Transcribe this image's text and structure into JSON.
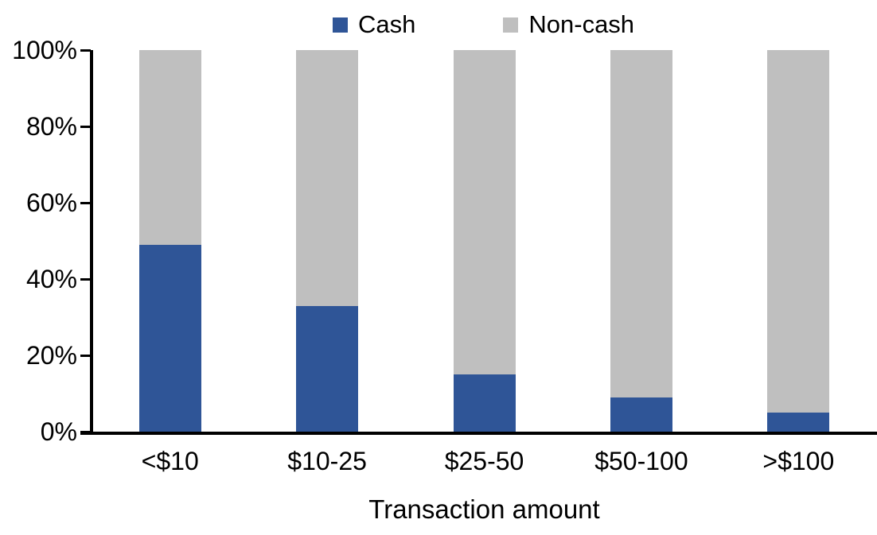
{
  "chart_data": {
    "type": "bar",
    "stacked": true,
    "stack_mode": "percent",
    "title": "",
    "xlabel": "Transaction amount",
    "ylabel": "",
    "ylim": [
      0,
      100
    ],
    "yticks": [
      "0%",
      "20%",
      "40%",
      "60%",
      "80%",
      "100%"
    ],
    "grid": false,
    "legend_position": "top",
    "categories": [
      "<$10",
      "$10-25",
      "$25-50",
      "$50-100",
      ">$100"
    ],
    "series": [
      {
        "name": "Cash",
        "color": "#2F5597",
        "values": [
          49,
          33,
          15,
          9,
          5
        ]
      },
      {
        "name": "Non-cash",
        "color": "#BFBFBF",
        "values": [
          51,
          67,
          85,
          91,
          95
        ]
      }
    ],
    "axis_color": "#000000",
    "text_color": "#000000"
  }
}
